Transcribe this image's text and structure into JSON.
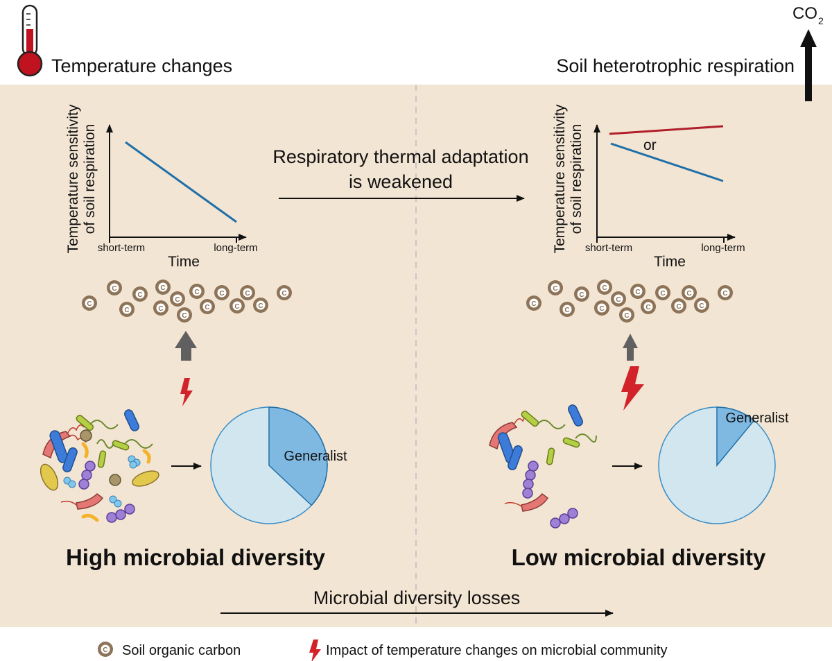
{
  "header": {
    "temperature_label": "Temperature changes",
    "respiration_label": "Soil heterotrophic respiration",
    "co2_main": "CO",
    "co2_sub": "2"
  },
  "colors": {
    "panel_bg": "#f3e5d3",
    "carbon": "#8d7358",
    "chart_blue": "#1f6fa8",
    "chart_red": "#b01e2b",
    "pie_light": "#d2e6ef",
    "pie_dark": "#7fb9e2",
    "lightning": "#d2232a",
    "up_arrow": "#606060"
  },
  "left_chart": {
    "ylabel_line1": "Temperature sensitivity",
    "ylabel_line2": "of soil respiration",
    "x_start": "short-term",
    "x_end": "long-term",
    "xlabel": "Time"
  },
  "right_chart": {
    "ylabel_line1": "Temperature sensitivity",
    "ylabel_line2": "of soil respiration",
    "x_start": "short-term",
    "x_end": "long-term",
    "xlabel": "Time",
    "or_label": "or"
  },
  "middle_arrow": {
    "line1": "Respiratory thermal adaptation",
    "line2": "is weakened"
  },
  "carbon_symbol": "C",
  "left_pie": {
    "label": "Generalist",
    "generalist_fraction": 0.37
  },
  "right_pie": {
    "label": "Generalist",
    "generalist_fraction": 0.11
  },
  "left_title": "High microbial diversity",
  "right_title": "Low microbial diversity",
  "bottom_arrow_label": "Microbial diversity losses",
  "legend": {
    "carbon_label": "Soil organic carbon",
    "impact_label": "Impact of temperature changes on microbial community"
  }
}
